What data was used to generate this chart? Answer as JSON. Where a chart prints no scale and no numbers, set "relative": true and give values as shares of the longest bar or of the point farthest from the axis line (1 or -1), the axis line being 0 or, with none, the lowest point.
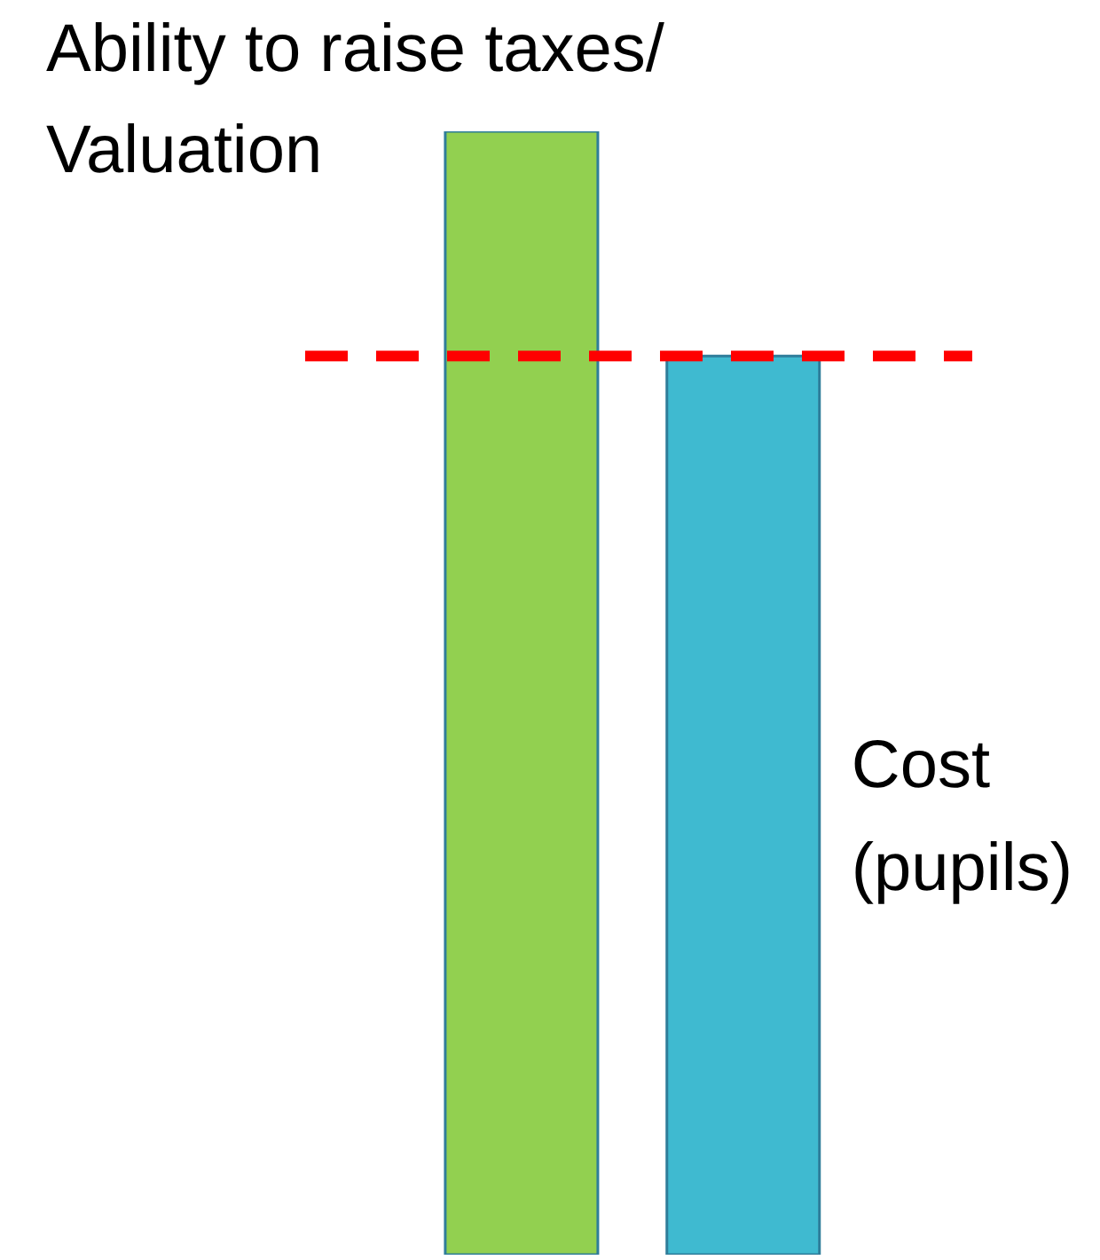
{
  "chart_data": {
    "type": "bar",
    "relative": true,
    "stacked": true,
    "categories": [
      null,
      null
    ],
    "series": [
      {
        "name": "Ability to raise taxes/ Valuation",
        "color": "#92d050",
        "values": [
          1,
          null
        ]
      },
      {
        "name": "Cost (pupils)",
        "color": "#3fbad0",
        "values": [
          null,
          0.8
        ]
      }
    ],
    "ref_lines": [
      {
        "axis": "y",
        "value": 0.8,
        "color": "#ff0000",
        "line_style": "dashed"
      }
    ]
  }
}
